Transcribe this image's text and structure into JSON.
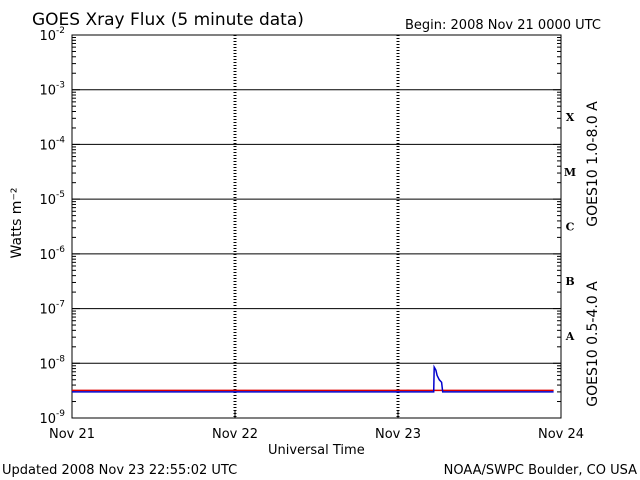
{
  "header": {
    "title": "GOES Xray Flux (5 minute data)",
    "begin": "Begin:  2008 Nov 21 0000 UTC"
  },
  "footer": {
    "updated": "Updated 2008 Nov 23 22:55:02 UTC",
    "credit": "NOAA/SWPC Boulder, CO USA"
  },
  "colors": {
    "long_channel": "#dd0000",
    "short_channel": "#0000cc",
    "axes": "#000000",
    "background": "#ffffff"
  },
  "chart_data": {
    "type": "line",
    "title": "GOES Xray Flux (5 minute data)",
    "xlabel": "Universal Time",
    "ylabel": "Watts m⁻²",
    "y_scale": "log",
    "ylim": [
      1e-09,
      0.01
    ],
    "y_ticks": [
      {
        "base": "10",
        "exp": "-2",
        "value": 0.01
      },
      {
        "base": "10",
        "exp": "-3",
        "value": 0.001
      },
      {
        "base": "10",
        "exp": "-4",
        "value": 0.0001
      },
      {
        "base": "10",
        "exp": "-5",
        "value": 1e-05
      },
      {
        "base": "10",
        "exp": "-6",
        "value": 1e-06
      },
      {
        "base": "10",
        "exp": "-7",
        "value": 1e-07
      },
      {
        "base": "10",
        "exp": "-8",
        "value": 1e-08
      },
      {
        "base": "10",
        "exp": "-9",
        "value": 1e-09
      }
    ],
    "xlim": [
      "2008-11-21 00:00",
      "2008-11-24 00:00"
    ],
    "x_ticks": [
      {
        "label": "Nov 21",
        "value": "2008-11-21 00:00"
      },
      {
        "label": "Nov 22",
        "value": "2008-11-22 00:00"
      },
      {
        "label": "Nov 23",
        "value": "2008-11-23 00:00"
      },
      {
        "label": "Nov 24",
        "value": "2008-11-24 00:00"
      }
    ],
    "flare_classes": [
      {
        "label": "X",
        "low": 0.0001,
        "high": 0.001
      },
      {
        "label": "M",
        "low": 1e-05,
        "high": 0.0001
      },
      {
        "label": "C",
        "low": 1e-06,
        "high": 1e-05
      },
      {
        "label": "B",
        "low": 1e-07,
        "high": 1e-06
      },
      {
        "label": "A",
        "low": 1e-08,
        "high": 1e-07
      }
    ],
    "grid": "horizontal lines at each decade",
    "series": [
      {
        "name": "GOES10 1.0-8.0 A",
        "color": "#dd0000",
        "x": [
          "2008-11-21 00:00",
          "2008-11-23 22:55"
        ],
        "y": [
          3.2e-09,
          3.2e-09
        ]
      },
      {
        "name": "GOES10 0.5-4.0 A",
        "color": "#0000cc",
        "x": [
          "2008-11-21 00:00",
          "2008-11-23 05:15",
          "2008-11-23 05:20",
          "2008-11-23 05:35",
          "2008-11-23 05:45",
          "2008-11-23 06:05",
          "2008-11-23 06:25",
          "2008-11-23 06:35",
          "2008-11-23 22:55"
        ],
        "y": [
          3e-09,
          3e-09,
          8.5e-09,
          7.5e-09,
          6e-09,
          5e-09,
          4.5e-09,
          3e-09,
          3e-09
        ]
      }
    ]
  }
}
